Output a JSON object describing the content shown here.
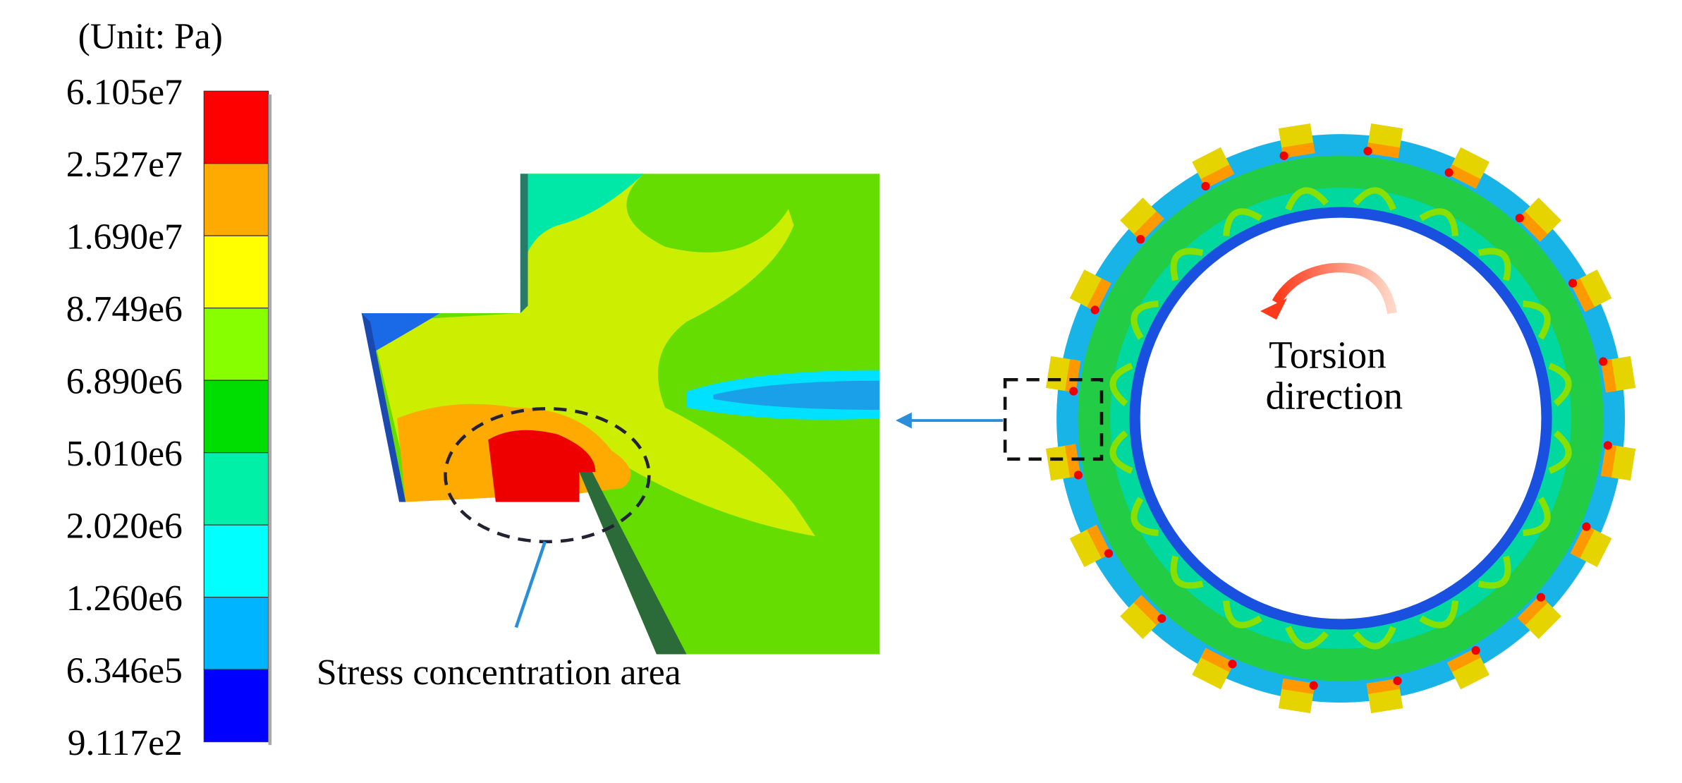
{
  "legend": {
    "unit": "(Unit: Pa)",
    "levels": [
      "6.105e7",
      "2.527e7",
      "1.690e7",
      "8.749e6",
      "6.890e6",
      "5.010e6",
      "2.020e6",
      "1.260e6",
      "6.346e5",
      "9.117e2"
    ],
    "colors": [
      "#ff0000",
      "#ffaa00",
      "#ffff00",
      "#88ff00",
      "#00dd00",
      "#00f0a8",
      "#00ffff",
      "#00b4ff",
      "#0000ff"
    ]
  },
  "annotations": {
    "stress": "Stress concentration area",
    "torsion": [
      "Torsion",
      "direction"
    ]
  }
}
